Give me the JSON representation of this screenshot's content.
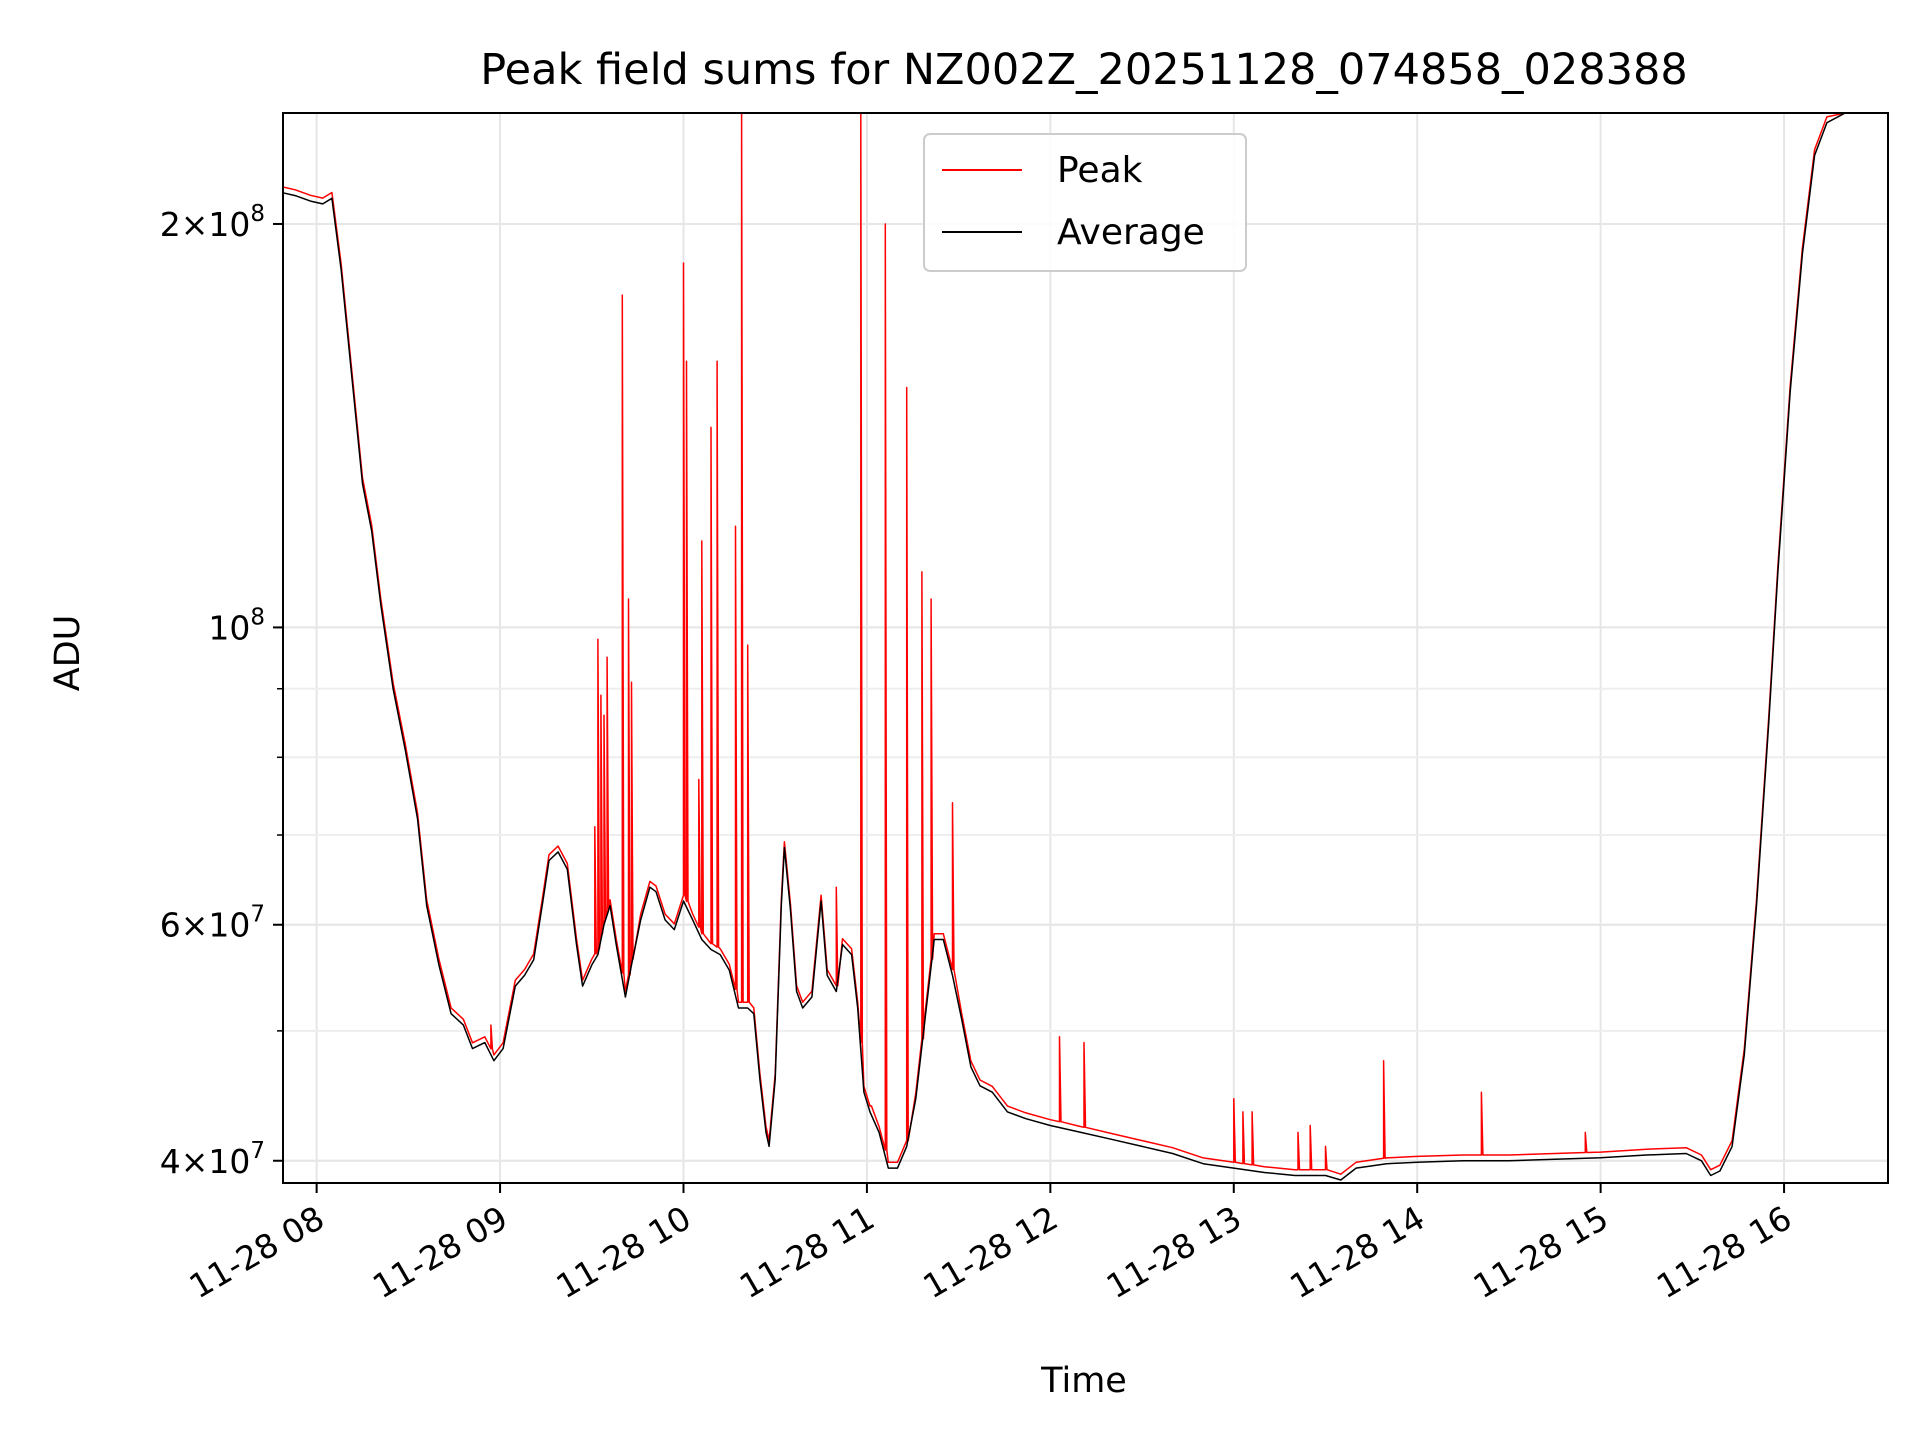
{
  "chart_data": {
    "type": "line",
    "title": "Peak field sums for NZ002Z_20251128_074858_028388",
    "xlabel": "Time",
    "ylabel": "ADU",
    "yscale": "log",
    "ylim": [
      38500000,
      242000000
    ],
    "xlim": [
      "11-28 07:49",
      "11-28 16:34"
    ],
    "grid": true,
    "legend_position": "top-center",
    "x_ticks": [
      "11-28 08",
      "11-28 09",
      "11-28 10",
      "11-28 11",
      "11-28 12",
      "11-28 13",
      "11-28 14",
      "11-28 15",
      "11-28 16"
    ],
    "y_ticks": [
      {
        "value": 40000000,
        "mantissa": "4",
        "exp": "7"
      },
      {
        "value": 60000000,
        "mantissa": "6",
        "exp": "7"
      },
      {
        "value": 100000000,
        "mantissa": "",
        "exp": "8"
      },
      {
        "value": 200000000,
        "mantissa": "2",
        "exp": "8"
      }
    ],
    "series": [
      {
        "name": "Peak",
        "color": "#ff0000"
      },
      {
        "name": "Average",
        "color": "#000000"
      }
    ],
    "average": [
      [
        "11-28 07:49",
        211000000
      ],
      [
        "11-28 07:53",
        210000000
      ],
      [
        "11-28 07:58",
        208000000
      ],
      [
        "11-28 08:02",
        207000000
      ],
      [
        "11-28 08:05",
        209000000
      ],
      [
        "11-28 08:08",
        185000000
      ],
      [
        "11-28 08:12",
        150000000
      ],
      [
        "11-28 08:15",
        128000000
      ],
      [
        "11-28 08:18",
        118000000
      ],
      [
        "11-28 08:21",
        104000000
      ],
      [
        "11-28 08:25",
        90000000
      ],
      [
        "11-28 08:29",
        81000000
      ],
      [
        "11-28 08:33",
        72000000
      ],
      [
        "11-28 08:36",
        62000000
      ],
      [
        "11-28 08:40",
        56000000
      ],
      [
        "11-28 08:44",
        51500000
      ],
      [
        "11-28 08:48",
        50500000
      ],
      [
        "11-28 08:51",
        48500000
      ],
      [
        "11-28 08:55",
        49000000
      ],
      [
        "11-28 08:58",
        47500000
      ],
      [
        "11-28 09:01",
        48500000
      ],
      [
        "11-28 09:05",
        54000000
      ],
      [
        "11-28 09:08",
        55000000
      ],
      [
        "11-28 09:11",
        56500000
      ],
      [
        "11-28 09:14",
        62500000
      ],
      [
        "11-28 09:16",
        67000000
      ],
      [
        "11-28 09:19",
        68000000
      ],
      [
        "11-28 09:22",
        66000000
      ],
      [
        "11-28 09:25",
        58000000
      ],
      [
        "11-28 09:27",
        54000000
      ],
      [
        "11-28 09:30",
        56000000
      ],
      [
        "11-28 09:32",
        57000000
      ],
      [
        "11-28 09:34",
        60000000
      ],
      [
        "11-28 09:36",
        62000000
      ],
      [
        "11-28 09:38",
        58000000
      ],
      [
        "11-28 09:41",
        53000000
      ],
      [
        "11-28 09:43",
        56000000
      ],
      [
        "11-28 09:46",
        60500000
      ],
      [
        "11-28 09:49",
        64000000
      ],
      [
        "11-28 09:51",
        63500000
      ],
      [
        "11-28 09:54",
        60500000
      ],
      [
        "11-28 09:57",
        59500000
      ],
      [
        "11-28 10:00",
        62500000
      ],
      [
        "11-28 10:03",
        60500000
      ],
      [
        "11-28 10:06",
        58500000
      ],
      [
        "11-28 10:09",
        57500000
      ],
      [
        "11-28 10:12",
        57000000
      ],
      [
        "11-28 10:15",
        55500000
      ],
      [
        "11-28 10:18",
        52000000
      ],
      [
        "11-28 10:21",
        52000000
      ],
      [
        "11-28 10:23",
        51500000
      ],
      [
        "11-28 10:25",
        46000000
      ],
      [
        "11-28 10:27",
        42000000
      ],
      [
        "11-28 10:28",
        41000000
      ],
      [
        "11-28 10:30",
        46000000
      ],
      [
        "11-28 10:32",
        62000000
      ],
      [
        "11-28 10:33",
        68500000
      ],
      [
        "11-28 10:35",
        61500000
      ],
      [
        "11-28 10:37",
        53500000
      ],
      [
        "11-28 10:39",
        52000000
      ],
      [
        "11-28 10:42",
        53000000
      ],
      [
        "11-28 10:45",
        62500000
      ],
      [
        "11-28 10:47",
        55000000
      ],
      [
        "11-28 10:50",
        53500000
      ],
      [
        "11-28 10:52",
        58000000
      ],
      [
        "11-28 10:55",
        57000000
      ],
      [
        "11-28 10:57",
        52000000
      ],
      [
        "11-28 10:59",
        45000000
      ],
      [
        "11-28 11:01",
        43500000
      ],
      [
        "11-28 11:04",
        42000000
      ],
      [
        "11-28 11:07",
        39500000
      ],
      [
        "11-28 11:10",
        39500000
      ],
      [
        "11-28 11:13",
        41000000
      ],
      [
        "11-28 11:16",
        44500000
      ],
      [
        "11-28 11:19",
        51000000
      ],
      [
        "11-28 11:22",
        58500000
      ],
      [
        "11-28 11:25",
        58500000
      ],
      [
        "11-28 11:28",
        55000000
      ],
      [
        "11-28 11:31",
        51000000
      ],
      [
        "11-28 11:34",
        47000000
      ],
      [
        "11-28 11:37",
        45500000
      ],
      [
        "11-28 11:41",
        45000000
      ],
      [
        "11-28 11:46",
        43500000
      ],
      [
        "11-28 11:52",
        43000000
      ],
      [
        "11-28 12:00",
        42500000
      ],
      [
        "11-28 12:10",
        42000000
      ],
      [
        "11-28 12:20",
        41500000
      ],
      [
        "11-28 12:30",
        41000000
      ],
      [
        "11-28 12:40",
        40500000
      ],
      [
        "11-28 12:50",
        39800000
      ],
      [
        "11-28 13:00",
        39500000
      ],
      [
        "11-28 13:10",
        39200000
      ],
      [
        "11-28 13:20",
        39000000
      ],
      [
        "11-28 13:30",
        39000000
      ],
      [
        "11-28 13:35",
        38700000
      ],
      [
        "11-28 13:40",
        39500000
      ],
      [
        "11-28 13:50",
        39800000
      ],
      [
        "11-28 14:00",
        39900000
      ],
      [
        "11-28 14:15",
        40000000
      ],
      [
        "11-28 14:30",
        40000000
      ],
      [
        "11-28 14:45",
        40100000
      ],
      [
        "11-28 15:00",
        40200000
      ],
      [
        "11-28 15:15",
        40400000
      ],
      [
        "11-28 15:28",
        40500000
      ],
      [
        "11-28 15:33",
        40000000
      ],
      [
        "11-28 15:36",
        39000000
      ],
      [
        "11-28 15:39",
        39300000
      ],
      [
        "11-28 15:43",
        41000000
      ],
      [
        "11-28 15:47",
        48000000
      ],
      [
        "11-28 15:51",
        62000000
      ],
      [
        "11-28 15:55",
        85000000
      ],
      [
        "11-28 15:58",
        110000000
      ],
      [
        "11-28 16:02",
        150000000
      ],
      [
        "11-28 16:06",
        190000000
      ],
      [
        "11-28 16:10",
        225000000
      ],
      [
        "11-28 16:14",
        238000000
      ],
      [
        "11-28 16:20",
        242000000
      ],
      [
        "11-28 16:34",
        242000000
      ]
    ],
    "peak_spikes": [
      [
        "11-28 08:57",
        50500000
      ],
      [
        "11-28 09:31",
        71000000
      ],
      [
        "11-28 09:32",
        98000000
      ],
      [
        "11-28 09:33",
        89000000
      ],
      [
        "11-28 09:34",
        86000000
      ],
      [
        "11-28 09:35",
        95000000
      ],
      [
        "11-28 09:40",
        177000000
      ],
      [
        "11-28 09:42",
        105000000
      ],
      [
        "11-28 09:43",
        91000000
      ],
      [
        "11-28 10:00",
        187000000
      ],
      [
        "11-28 10:01",
        158000000
      ],
      [
        "11-28 10:05",
        77000000
      ],
      [
        "11-28 10:06",
        116000000
      ],
      [
        "11-28 10:09",
        141000000
      ],
      [
        "11-28 10:11",
        158000000
      ],
      [
        "11-28 10:17",
        119000000
      ],
      [
        "11-28 10:19",
        242000000
      ],
      [
        "11-28 10:21",
        97000000
      ],
      [
        "11-28 10:50",
        64000000
      ],
      [
        "11-28 10:58",
        242000000
      ],
      [
        "11-28 11:01",
        44000000
      ],
      [
        "11-28 11:06",
        200000000
      ],
      [
        "11-28 11:13",
        151000000
      ],
      [
        "11-28 11:18",
        110000000
      ],
      [
        "11-28 11:21",
        105000000
      ],
      [
        "11-28 11:28",
        74000000
      ],
      [
        "11-28 12:03",
        49500000
      ],
      [
        "11-28 12:11",
        49000000
      ],
      [
        "11-28 13:00",
        44500000
      ],
      [
        "11-28 13:03",
        43500000
      ],
      [
        "11-28 13:06",
        43500000
      ],
      [
        "11-28 13:21",
        42000000
      ],
      [
        "11-28 13:25",
        42500000
      ],
      [
        "11-28 13:30",
        41000000
      ],
      [
        "11-28 13:49",
        47500000
      ],
      [
        "11-28 14:21",
        45000000
      ],
      [
        "11-28 14:55",
        42000000
      ]
    ]
  }
}
